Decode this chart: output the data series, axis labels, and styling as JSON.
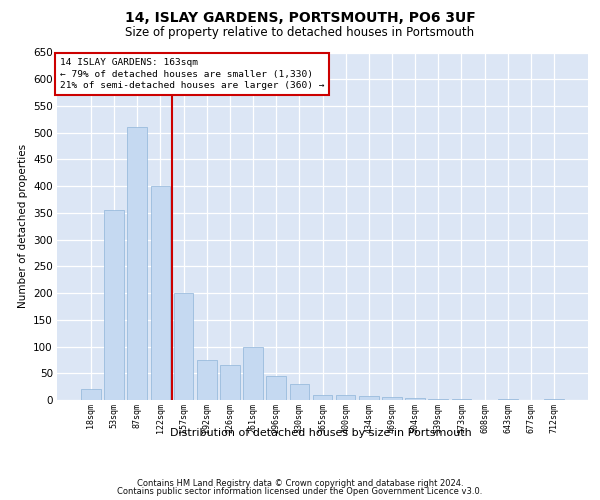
{
  "title": "14, ISLAY GARDENS, PORTSMOUTH, PO6 3UF",
  "subtitle": "Size of property relative to detached houses in Portsmouth",
  "xlabel": "Distribution of detached houses by size in Portsmouth",
  "ylabel": "Number of detached properties",
  "bar_color": "#c5d9f1",
  "bar_edge_color": "#8fb4d9",
  "background_color": "#dce6f5",
  "annotation_line1": "14 ISLAY GARDENS: 163sqm",
  "annotation_line2": "← 79% of detached houses are smaller (1,330)",
  "annotation_line3": "21% of semi-detached houses are larger (360) →",
  "vline_color": "#cc0000",
  "vline_index": 3.5,
  "categories": [
    "18sqm",
    "53sqm",
    "87sqm",
    "122sqm",
    "157sqm",
    "192sqm",
    "226sqm",
    "261sqm",
    "296sqm",
    "330sqm",
    "365sqm",
    "400sqm",
    "434sqm",
    "469sqm",
    "504sqm",
    "539sqm",
    "573sqm",
    "608sqm",
    "643sqm",
    "677sqm",
    "712sqm"
  ],
  "values": [
    20,
    355,
    510,
    400,
    200,
    75,
    65,
    100,
    45,
    30,
    10,
    10,
    8,
    5,
    3,
    2,
    1,
    0,
    1,
    0,
    1
  ],
  "ylim": [
    0,
    650
  ],
  "yticks": [
    0,
    50,
    100,
    150,
    200,
    250,
    300,
    350,
    400,
    450,
    500,
    550,
    600,
    650
  ],
  "footer1": "Contains HM Land Registry data © Crown copyright and database right 2024.",
  "footer2": "Contains public sector information licensed under the Open Government Licence v3.0."
}
